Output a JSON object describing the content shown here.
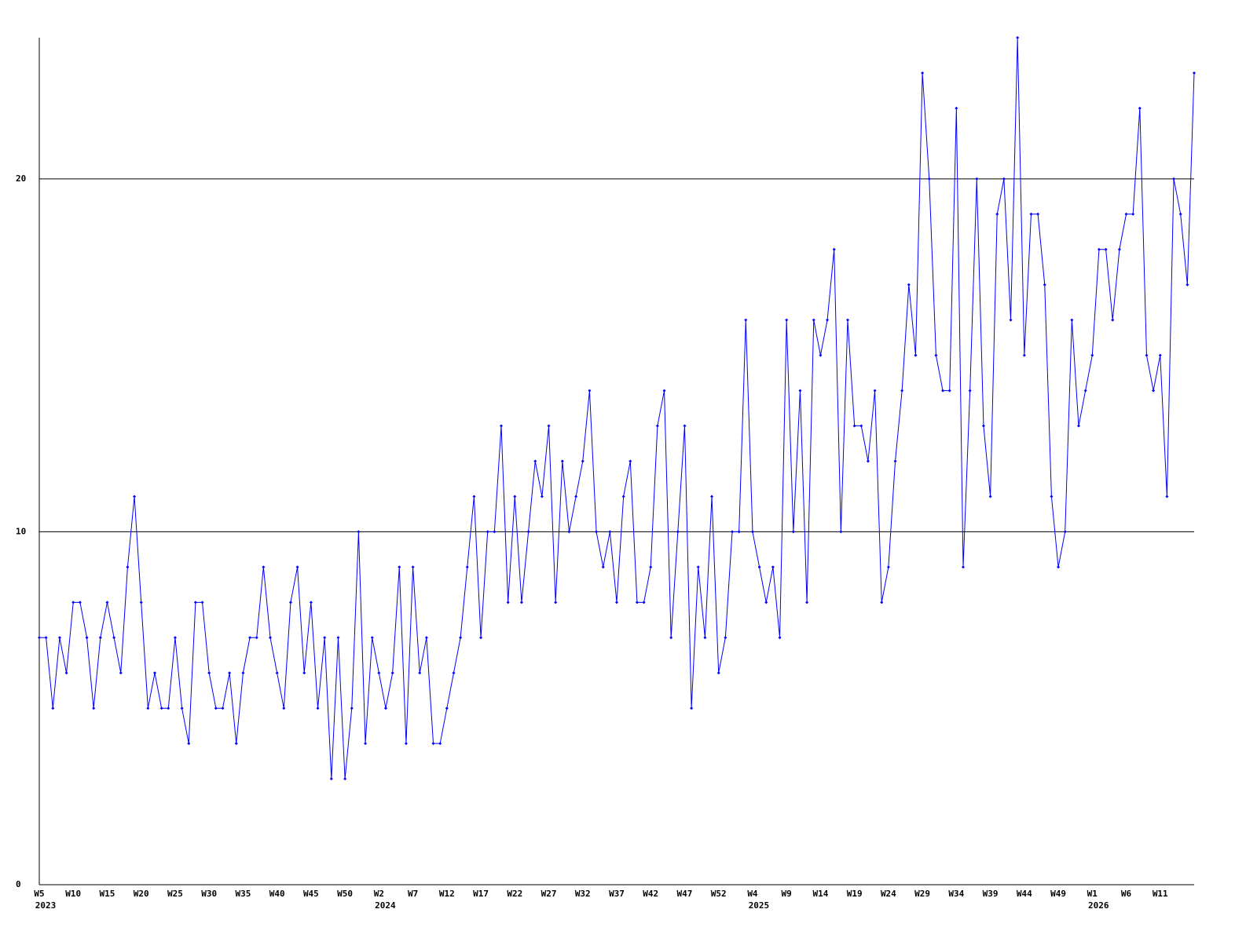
{
  "chart_data": {
    "type": "line",
    "categories": [
      "W5",
      null,
      null,
      null,
      null,
      "W10",
      null,
      null,
      null,
      null,
      "W15",
      null,
      null,
      null,
      null,
      "W20",
      null,
      null,
      null,
      null,
      "W25",
      null,
      null,
      null,
      null,
      "W30",
      null,
      null,
      null,
      null,
      "W35",
      null,
      null,
      null,
      null,
      "W40",
      null,
      null,
      null,
      null,
      "W45",
      null,
      null,
      null,
      null,
      "W50",
      null,
      null,
      null,
      null,
      "W2",
      null,
      null,
      null,
      null,
      "W7",
      null,
      null,
      null,
      null,
      "W12",
      null,
      null,
      null,
      null,
      "W17",
      null,
      null,
      null,
      null,
      "W22",
      null,
      null,
      null,
      null,
      "W27",
      null,
      null,
      null,
      null,
      "W32",
      null,
      null,
      null,
      null,
      "W37",
      null,
      null,
      null,
      null,
      "W42",
      null,
      null,
      null,
      null,
      "W47",
      null,
      null,
      null,
      null,
      "W52",
      null,
      null,
      null,
      null,
      "W4",
      null,
      null,
      null,
      null,
      "W9",
      null,
      null,
      null,
      null,
      "W14",
      null,
      null,
      null,
      null,
      "W19",
      null,
      null,
      null,
      null,
      "W24",
      null,
      null,
      null,
      null,
      "W29",
      null,
      null,
      null,
      null,
      "W34",
      null,
      null,
      null,
      null,
      "W39",
      null,
      null,
      null,
      null,
      "W44",
      null,
      null,
      null,
      null,
      "W49",
      null,
      null,
      null,
      null,
      "W1",
      null,
      null,
      null,
      null,
      "W6",
      null,
      null,
      null,
      null,
      "W11",
      null,
      null,
      null,
      null,
      null
    ],
    "year_categories": [
      "2023",
      null,
      null,
      null,
      null,
      null,
      null,
      null,
      null,
      null,
      null,
      null,
      null,
      null,
      null,
      null,
      null,
      null,
      null,
      null,
      null,
      null,
      null,
      null,
      null,
      null,
      null,
      null,
      null,
      null,
      null,
      null,
      null,
      null,
      null,
      null,
      null,
      null,
      null,
      null,
      null,
      null,
      null,
      null,
      null,
      null,
      null,
      null,
      null,
      null,
      "2024",
      null,
      null,
      null,
      null,
      null,
      null,
      null,
      null,
      null,
      null,
      null,
      null,
      null,
      null,
      null,
      null,
      null,
      null,
      null,
      null,
      null,
      null,
      null,
      null,
      null,
      null,
      null,
      null,
      null,
      null,
      null,
      null,
      null,
      null,
      null,
      null,
      null,
      null,
      null,
      null,
      null,
      null,
      null,
      null,
      null,
      null,
      null,
      null,
      null,
      null,
      null,
      null,
      null,
      null,
      "2025",
      null,
      null,
      null,
      null,
      null,
      null,
      null,
      null,
      null,
      null,
      null,
      null,
      null,
      null,
      null,
      null,
      null,
      null,
      null,
      null,
      null,
      null,
      null,
      null,
      null,
      null,
      null,
      null,
      null,
      null,
      null,
      null,
      null,
      null,
      null,
      null,
      null,
      null,
      null,
      null,
      null,
      null,
      null,
      null,
      null,
      null,
      null,
      null,
      null,
      "2026",
      null,
      null,
      null,
      null,
      null,
      null,
      null,
      null,
      null,
      null,
      null,
      null,
      null,
      null,
      null
    ],
    "series": [
      {
        "color": "#0000ff",
        "values": [
          7,
          7,
          5,
          7,
          6,
          8,
          8,
          7,
          5,
          7,
          8,
          7,
          6,
          9,
          11,
          8,
          5,
          6,
          5,
          5,
          7,
          5,
          4,
          8,
          8,
          6,
          5,
          5,
          6,
          4,
          6,
          7,
          7,
          9,
          7,
          6,
          5,
          8,
          9,
          6,
          8,
          5,
          7,
          3,
          7,
          3,
          5,
          10,
          4,
          7,
          6,
          5,
          6,
          9,
          4,
          9,
          6,
          7,
          4,
          4,
          5,
          6,
          7,
          9,
          11,
          7,
          10,
          10,
          13,
          8,
          11,
          8,
          10,
          12,
          11,
          13,
          8,
          12,
          10,
          11,
          12,
          14,
          10,
          9,
          10,
          8,
          11,
          12,
          8,
          8,
          9,
          13,
          14,
          7,
          10,
          13,
          5,
          9,
          7,
          11,
          6,
          7,
          10,
          10,
          16,
          10,
          9,
          8,
          9,
          7,
          16,
          10,
          14,
          8,
          16,
          15,
          16,
          18,
          10,
          16,
          13,
          13,
          12,
          14,
          8,
          9,
          12,
          14,
          17,
          15,
          23,
          20,
          15,
          14,
          14,
          22,
          9,
          14,
          20,
          13,
          11,
          19,
          20,
          16,
          24,
          15,
          19,
          19,
          17,
          11,
          9,
          10,
          16,
          13,
          14,
          15,
          18,
          18,
          16,
          18,
          19,
          19,
          22,
          15,
          14,
          15,
          11,
          20,
          19,
          17,
          23
        ]
      }
    ],
    "ylim": [
      0,
      24
    ],
    "yticks": [
      0,
      10,
      20
    ],
    "grid": true
  }
}
